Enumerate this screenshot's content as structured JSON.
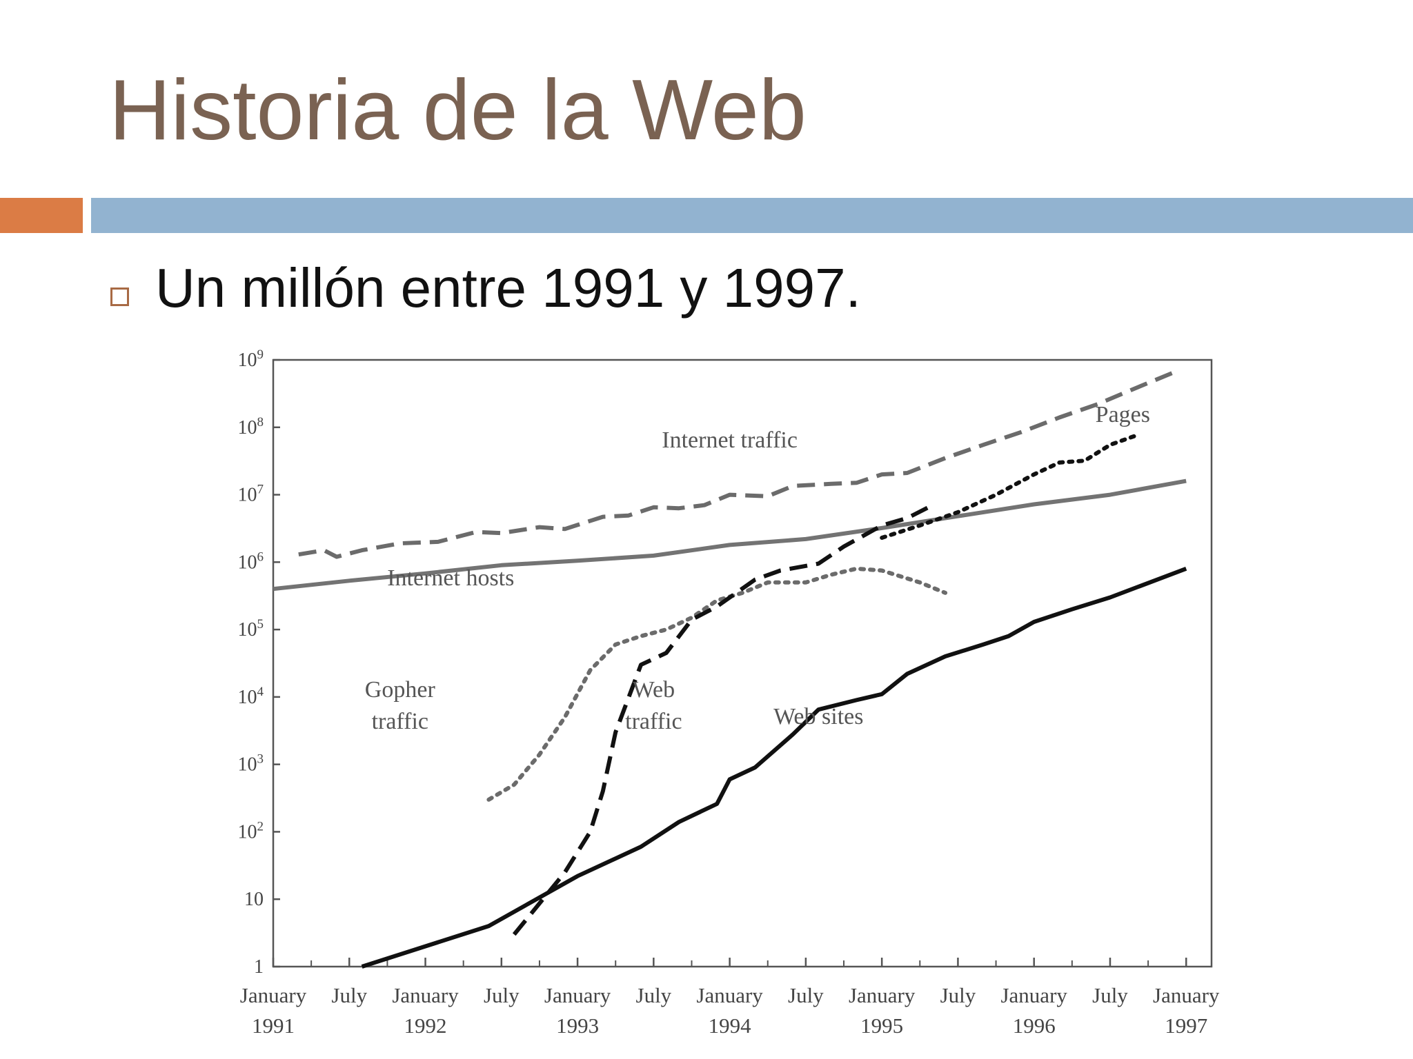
{
  "slide": {
    "title": "Historia de la Web",
    "bullet": "Un millón entre 1991 y 1997.",
    "colors": {
      "title": "#7a6252",
      "accent": "#db7c45",
      "rule": "#92b3d0",
      "bullet_box": "#a86a44"
    }
  },
  "chart_data": {
    "type": "line",
    "title": "",
    "xlabel": "",
    "ylabel": "",
    "y_scale": "log",
    "ylim": [
      1,
      1000000000
    ],
    "xlim": [
      "1991-01",
      "1997-03"
    ],
    "grid": false,
    "legend": "none",
    "y_ticks": [
      {
        "value": 1,
        "base": "1",
        "exp": ""
      },
      {
        "value": 10,
        "base": "10",
        "exp": ""
      },
      {
        "value": 100,
        "base": "10",
        "exp": "2"
      },
      {
        "value": 1000,
        "base": "10",
        "exp": "3"
      },
      {
        "value": 10000,
        "base": "10",
        "exp": "4"
      },
      {
        "value": 100000,
        "base": "10",
        "exp": "5"
      },
      {
        "value": 1000000,
        "base": "10",
        "exp": "6"
      },
      {
        "value": 10000000,
        "base": "10",
        "exp": "7"
      },
      {
        "value": 100000000,
        "base": "10",
        "exp": "8"
      },
      {
        "value": 1000000000,
        "base": "10",
        "exp": "9"
      }
    ],
    "x_ticks": [
      {
        "date": "1991-01",
        "line1": "January",
        "line2": "1991"
      },
      {
        "date": "1991-07",
        "line1": "July",
        "line2": ""
      },
      {
        "date": "1992-01",
        "line1": "January",
        "line2": "1992"
      },
      {
        "date": "1992-07",
        "line1": "July",
        "line2": ""
      },
      {
        "date": "1993-01",
        "line1": "January",
        "line2": "1993"
      },
      {
        "date": "1993-07",
        "line1": "July",
        "line2": ""
      },
      {
        "date": "1994-01",
        "line1": "January",
        "line2": "1994"
      },
      {
        "date": "1994-07",
        "line1": "July",
        "line2": ""
      },
      {
        "date": "1995-01",
        "line1": "January",
        "line2": "1995"
      },
      {
        "date": "1995-07",
        "line1": "July",
        "line2": ""
      },
      {
        "date": "1996-01",
        "line1": "January",
        "line2": "1996"
      },
      {
        "date": "1996-07",
        "line1": "July",
        "line2": ""
      },
      {
        "date": "1997-01",
        "line1": "January",
        "line2": "1997"
      }
    ],
    "series": [
      {
        "name": "Internet traffic",
        "style": "dashed",
        "color": "#6b6b6b",
        "label_lines": [
          "Internet traffic"
        ],
        "label_at": {
          "date": "1994-01",
          "value": 50000000
        },
        "points": [
          [
            "1991-03",
            1300000
          ],
          [
            "1991-05",
            1500000
          ],
          [
            "1991-06",
            1200000
          ],
          [
            "1991-08",
            1500000
          ],
          [
            "1991-11",
            1900000
          ],
          [
            "1992-02",
            2000000
          ],
          [
            "1992-05",
            2800000
          ],
          [
            "1992-07",
            2700000
          ],
          [
            "1992-10",
            3300000
          ],
          [
            "1992-12",
            3100000
          ],
          [
            "1993-03",
            4700000
          ],
          [
            "1993-05",
            4900000
          ],
          [
            "1993-07",
            6500000
          ],
          [
            "1993-09",
            6300000
          ],
          [
            "1993-11",
            7000000
          ],
          [
            "1994-01",
            10000000
          ],
          [
            "1994-04",
            9500000
          ],
          [
            "1994-06",
            13500000
          ],
          [
            "1994-09",
            14500000
          ],
          [
            "1994-11",
            15000000
          ],
          [
            "1995-01",
            20000000
          ],
          [
            "1995-03",
            21000000
          ],
          [
            "1995-06",
            35000000
          ],
          [
            "1995-09",
            55000000
          ],
          [
            "1995-12",
            85000000
          ],
          [
            "1996-03",
            140000000
          ],
          [
            "1996-06",
            220000000
          ],
          [
            "1996-09",
            380000000
          ],
          [
            "1996-12",
            650000000
          ]
        ]
      },
      {
        "name": "Internet hosts",
        "style": "solid",
        "color": "#737373",
        "label_lines": [
          "Internet hosts"
        ],
        "label_at": {
          "date": "1992-03",
          "value": 450000
        },
        "points": [
          [
            "1991-01",
            400000
          ],
          [
            "1991-07",
            530000
          ],
          [
            "1992-01",
            680000
          ],
          [
            "1992-07",
            900000
          ],
          [
            "1993-01",
            1050000
          ],
          [
            "1993-07",
            1250000
          ],
          [
            "1994-01",
            1800000
          ],
          [
            "1994-07",
            2200000
          ],
          [
            "1995-01",
            3200000
          ],
          [
            "1995-07",
            4800000
          ],
          [
            "1996-01",
            7200000
          ],
          [
            "1996-07",
            10000000
          ],
          [
            "1997-01",
            16000000
          ]
        ]
      },
      {
        "name": "Gopher traffic",
        "style": "dotted",
        "color": "#6b6b6b",
        "label_lines": [
          "Gopher",
          "traffic"
        ],
        "label_at": {
          "date": "1991-11",
          "value": 10000
        },
        "points": [
          [
            "1992-06",
            300
          ],
          [
            "1992-08",
            500
          ],
          [
            "1992-10",
            1400
          ],
          [
            "1992-12",
            5000
          ],
          [
            "1993-02",
            25000
          ],
          [
            "1993-04",
            60000
          ],
          [
            "1993-06",
            80000
          ],
          [
            "1993-08",
            100000
          ],
          [
            "1993-10",
            150000
          ],
          [
            "1993-12",
            270000
          ],
          [
            "1994-02",
            350000
          ],
          [
            "1994-04",
            500000
          ],
          [
            "1994-07",
            500000
          ],
          [
            "1994-09",
            650000
          ],
          [
            "1994-11",
            800000
          ],
          [
            "1995-01",
            750000
          ],
          [
            "1995-04",
            500000
          ],
          [
            "1995-06",
            350000
          ]
        ]
      },
      {
        "name": "Web traffic",
        "style": "dashed",
        "color": "#111111",
        "label_lines": [
          "Web",
          "traffic"
        ],
        "label_at": {
          "date": "1993-07",
          "value": 10000
        },
        "points": [
          [
            "1992-08",
            3
          ],
          [
            "1992-12",
            25
          ],
          [
            "1993-02",
            100
          ],
          [
            "1993-03",
            400
          ],
          [
            "1993-04",
            3000
          ],
          [
            "1993-06",
            30000
          ],
          [
            "1993-08",
            45000
          ],
          [
            "1993-10",
            140000
          ],
          [
            "1993-12",
            220000
          ],
          [
            "1994-03",
            550000
          ],
          [
            "1994-05",
            750000
          ],
          [
            "1994-08",
            950000
          ],
          [
            "1994-10",
            1700000
          ],
          [
            "1995-01",
            3500000
          ],
          [
            "1995-03",
            4500000
          ],
          [
            "1995-05",
            7000000
          ]
        ]
      },
      {
        "name": "Pages",
        "style": "dotted",
        "color": "#111111",
        "label_lines": [
          "Pages"
        ],
        "label_at": {
          "date": "1996-08",
          "value": 120000000
        },
        "points": [
          [
            "1995-01",
            2300000
          ],
          [
            "1995-04",
            3500000
          ],
          [
            "1995-07",
            5500000
          ],
          [
            "1995-10",
            10000000
          ],
          [
            "1996-01",
            20000000
          ],
          [
            "1996-03",
            30000000
          ],
          [
            "1996-05",
            32000000
          ],
          [
            "1996-07",
            55000000
          ],
          [
            "1996-09",
            75000000
          ]
        ]
      },
      {
        "name": "Web sites",
        "style": "solid",
        "color": "#111111",
        "label_lines": [
          "Web sites"
        ],
        "label_at": {
          "date": "1994-08",
          "value": 4000
        },
        "points": [
          [
            "1991-08",
            1
          ],
          [
            "1992-06",
            4
          ],
          [
            "1993-01",
            22
          ],
          [
            "1993-06",
            60
          ],
          [
            "1993-09",
            140
          ],
          [
            "1993-12",
            260
          ],
          [
            "1994-01",
            600
          ],
          [
            "1994-03",
            900
          ],
          [
            "1994-06",
            2800
          ],
          [
            "1994-08",
            6500
          ],
          [
            "1994-11",
            9000
          ],
          [
            "1995-01",
            11000
          ],
          [
            "1995-03",
            22000
          ],
          [
            "1995-06",
            40000
          ],
          [
            "1995-09",
            60000
          ],
          [
            "1995-11",
            80000
          ],
          [
            "1996-01",
            130000
          ],
          [
            "1996-04",
            200000
          ],
          [
            "1996-07",
            300000
          ],
          [
            "1997-01",
            800000
          ]
        ]
      }
    ]
  }
}
